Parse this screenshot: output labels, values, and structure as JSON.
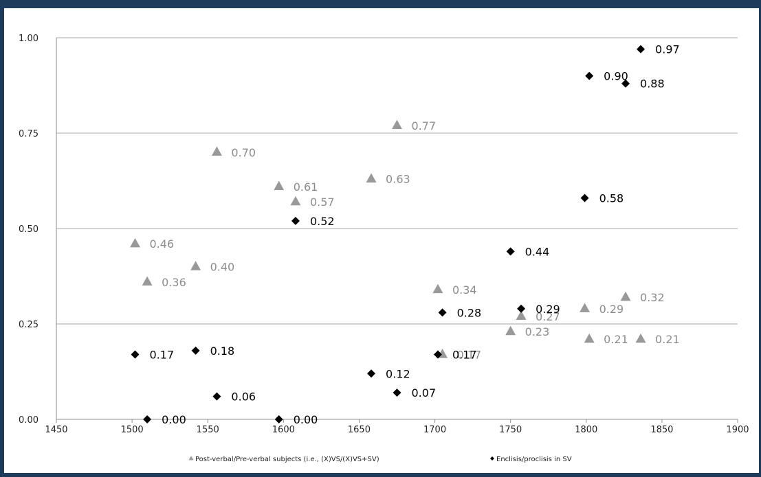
{
  "chart_data": {
    "type": "scatter",
    "title": "",
    "xlabel": "",
    "ylabel": "",
    "xlim": [
      1450,
      1900
    ],
    "ylim": [
      0,
      1
    ],
    "x_ticks": [
      "1450",
      "1500",
      "1550",
      "1600",
      "1650",
      "1700",
      "1750",
      "1800",
      "1850",
      "1900"
    ],
    "y_ticks": [
      "0.00",
      "0.25",
      "0.50",
      "0.75",
      "1.00"
    ],
    "grid": "horizontal",
    "legend_position": "bottom",
    "series": [
      {
        "name": "Post-verbal/Pre-verbal subjects (i.e., (X)VS/(X)VS+SV)",
        "marker": "triangle",
        "color": "#999999",
        "points": [
          {
            "x": 1502,
            "y": 0.46,
            "label": "0.46"
          },
          {
            "x": 1510,
            "y": 0.36,
            "label": "0.36"
          },
          {
            "x": 1542,
            "y": 0.4,
            "label": "0.40"
          },
          {
            "x": 1556,
            "y": 0.7,
            "label": "0.70"
          },
          {
            "x": 1597,
            "y": 0.61,
            "label": "0.61"
          },
          {
            "x": 1608,
            "y": 0.57,
            "label": "0.57"
          },
          {
            "x": 1658,
            "y": 0.63,
            "label": "0.63"
          },
          {
            "x": 1675,
            "y": 0.77,
            "label": "0.77"
          },
          {
            "x": 1702,
            "y": 0.34,
            "label": "0.34"
          },
          {
            "x": 1705,
            "y": 0.17,
            "label": "0.17"
          },
          {
            "x": 1750,
            "y": 0.23,
            "label": "0.23"
          },
          {
            "x": 1757,
            "y": 0.27,
            "label": "0.27"
          },
          {
            "x": 1799,
            "y": 0.29,
            "label": "0.29"
          },
          {
            "x": 1802,
            "y": 0.21,
            "label": "0.21"
          },
          {
            "x": 1826,
            "y": 0.32,
            "label": "0.32"
          },
          {
            "x": 1836,
            "y": 0.21,
            "label": "0.21"
          }
        ]
      },
      {
        "name": "Enclisis/proclisis in SV",
        "marker": "diamond",
        "color": "#000000",
        "points": [
          {
            "x": 1502,
            "y": 0.17,
            "label": "0.17"
          },
          {
            "x": 1510,
            "y": 0.0,
            "label": "0.00"
          },
          {
            "x": 1542,
            "y": 0.18,
            "label": "0.18"
          },
          {
            "x": 1556,
            "y": 0.06,
            "label": "0.06"
          },
          {
            "x": 1597,
            "y": 0.0,
            "label": "0.00"
          },
          {
            "x": 1608,
            "y": 0.52,
            "label": "0.52"
          },
          {
            "x": 1658,
            "y": 0.12,
            "label": "0.12"
          },
          {
            "x": 1675,
            "y": 0.07,
            "label": "0.07"
          },
          {
            "x": 1702,
            "y": 0.17,
            "label": "0.17"
          },
          {
            "x": 1705,
            "y": 0.28,
            "label": "0.28"
          },
          {
            "x": 1750,
            "y": 0.44,
            "label": "0.44"
          },
          {
            "x": 1757,
            "y": 0.29,
            "label": "0.29"
          },
          {
            "x": 1799,
            "y": 0.58,
            "label": "0.58"
          },
          {
            "x": 1802,
            "y": 0.9,
            "label": "0.90"
          },
          {
            "x": 1826,
            "y": 0.88,
            "label": "0.88"
          },
          {
            "x": 1836,
            "y": 0.97,
            "label": "0.97"
          }
        ]
      }
    ]
  }
}
